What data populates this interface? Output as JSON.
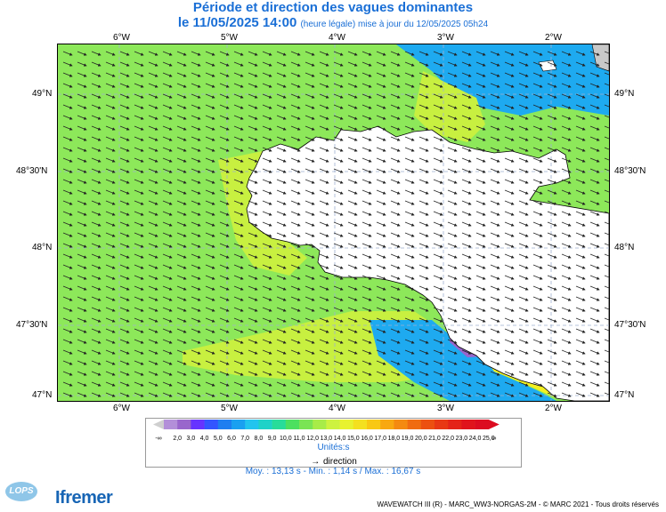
{
  "header": {
    "title": "Période et direction des vagues dominantes",
    "date": "le 11/05/2025 14:00",
    "time_note": "(heure légale) mise à jour du 12/05/2025 05h24"
  },
  "map": {
    "lon_ticks": [
      "6°W",
      "5°W",
      "4°W",
      "3°W",
      "2°W"
    ],
    "lat_ticks": [
      "49°N",
      "48°30'N",
      "48°N",
      "47°30'N",
      "47°N"
    ],
    "colors": {
      "open_sea": "#8de85a",
      "near_coast": "#c8f040",
      "bay": "#f4f020",
      "channel": "#1eaaf0",
      "purple": "#9966cc",
      "land": "#ffffff"
    }
  },
  "legend": {
    "labels": [
      "-∞",
      "2,0",
      "3,0",
      "4,0",
      "5,0",
      "6,0",
      "7,0",
      "8,0",
      "9,0",
      "10,0",
      "11,0",
      "12,0",
      "13,0",
      "14,0",
      "15,0",
      "16,0",
      "17,0",
      "18,0",
      "19,0",
      "20,0",
      "21,0",
      "22,0",
      "23,0",
      "24,0",
      "25,0",
      "∞"
    ],
    "colors": [
      "#b38fd9",
      "#9966cc",
      "#6633ff",
      "#3355ff",
      "#1e7ef0",
      "#1aa0f0",
      "#22c4ee",
      "#1ed2c8",
      "#28dc9a",
      "#4ce060",
      "#7ae454",
      "#a8ec48",
      "#cdf240",
      "#e8f230",
      "#f4e020",
      "#f8c814",
      "#f8a810",
      "#f48a10",
      "#f06c10",
      "#ec5010",
      "#e83814",
      "#e42418",
      "#e0141c",
      "#dc0c20"
    ],
    "unit": "Unités:s",
    "direction_label": "direction"
  },
  "stats": "Moy. : 13,13 s   -   Min. : 1,14 s / Max. : 16,67 s",
  "logos": {
    "lops": "LOPS",
    "ifremer": "Ifremer"
  },
  "footer": "WAVEWATCH III (R) - MARC_WW3-NORGAS-2M - © MARC 2021 - Tous droits réservés"
}
